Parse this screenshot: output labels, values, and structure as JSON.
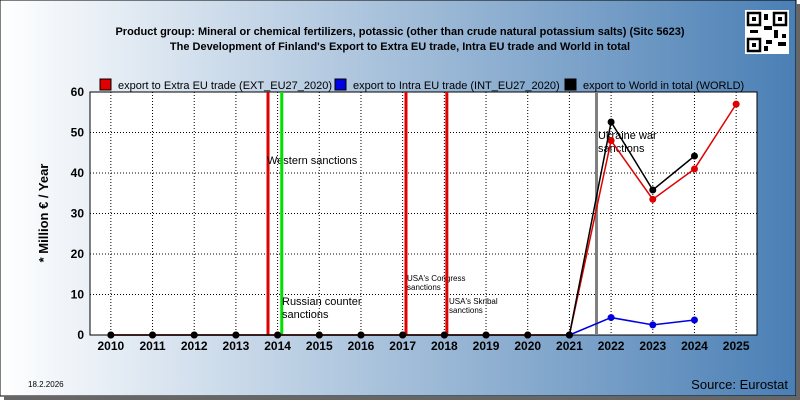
{
  "chart_data": {
    "type": "line",
    "title": "Product group: Mineral or chemical fertilizers, potassic (other than crude natural potassium salts) (Sitc 5623)",
    "subtitle": "The Development of Finland's Export to Extra EU trade, Intra EU trade and World in total",
    "y_label": "* Million € / Year",
    "date": "18.2.2026",
    "source": "Source: Eurostat",
    "x": [
      2010,
      2011,
      2012,
      2013,
      2014,
      2015,
      2016,
      2017,
      2018,
      2019,
      2020,
      2021,
      2022,
      2023,
      2024,
      2025
    ],
    "xlim": [
      2009.5,
      2025.5
    ],
    "xticks": [
      2010,
      2011,
      2012,
      2013,
      2014,
      2015,
      2016,
      2017,
      2018,
      2019,
      2020,
      2021,
      2022,
      2023,
      2024,
      2025
    ],
    "ylim": [
      0,
      60
    ],
    "yticks": [
      0,
      10,
      20,
      30,
      40,
      50,
      60
    ],
    "grid": true,
    "series": [
      {
        "name": "export to Extra EU trade (EXT_EU27_2020)",
        "color": "#e00000",
        "values": [
          0,
          0,
          0,
          0,
          0,
          0,
          0,
          0,
          0,
          0,
          0,
          0,
          48,
          33.5,
          41,
          57
        ]
      },
      {
        "name": "export to Intra EU trade (INT_EU27_2020)",
        "color": "#0000e0",
        "values": [
          null,
          null,
          null,
          null,
          null,
          null,
          null,
          null,
          null,
          null,
          null,
          0,
          4.3,
          2.5,
          3.7,
          null
        ]
      },
      {
        "name": "export to World in total (WORLD)",
        "color": "#000000",
        "values": [
          0,
          0,
          0,
          0,
          0,
          0,
          0,
          0,
          0,
          0,
          0,
          0,
          52.6,
          35.8,
          44.2,
          null
        ]
      }
    ],
    "events": [
      {
        "x": 2013.77,
        "label": "Western sanctions",
        "color": "#e00000"
      },
      {
        "x": 2014.1,
        "label": "Russian counter sanctions",
        "color": "#00e000"
      },
      {
        "x": 2017.08,
        "label": "USA's Congress sanctions",
        "color": "#e00000"
      },
      {
        "x": 2018.06,
        "label": "USA's Skribal sanctions",
        "color": "#e00000"
      },
      {
        "x": 2021.65,
        "label": "Ukraine war sanctions",
        "color": "#808080"
      }
    ]
  }
}
